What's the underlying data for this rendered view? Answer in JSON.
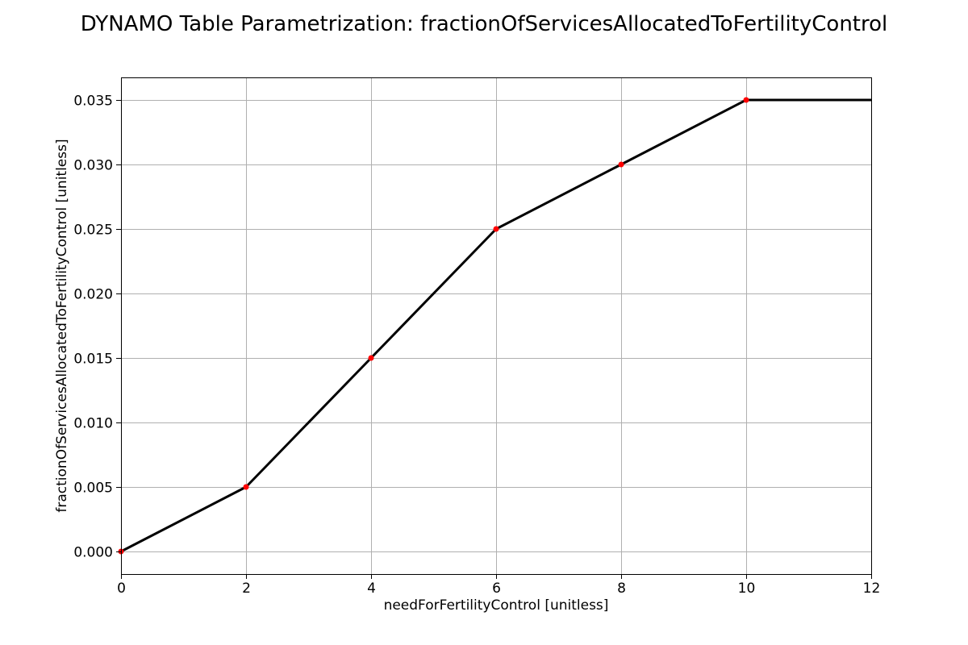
{
  "chart_data": {
    "type": "line",
    "title": "DYNAMO Table Parametrization: fractionOfServicesAllocatedToFertilityControl",
    "xlabel": "needForFertilityControl [unitless]",
    "ylabel": "fractionOfServicesAllocatedToFertilityControl [unitless]",
    "xlim": [
      0,
      12
    ],
    "ylim": [
      -0.00175,
      0.03675
    ],
    "x_ticks": [
      "0",
      "2",
      "4",
      "6",
      "8",
      "10",
      "12"
    ],
    "y_ticks": [
      "0.000",
      "0.005",
      "0.010",
      "0.015",
      "0.020",
      "0.025",
      "0.030",
      "0.035"
    ],
    "grid": true,
    "series": [
      {
        "x": [
          0,
          2,
          4,
          6,
          8,
          10,
          12
        ],
        "y": [
          0.0,
          0.005,
          0.015,
          0.025,
          0.03,
          0.035,
          0.035
        ],
        "color": "#000000"
      }
    ],
    "points": {
      "x": [
        0,
        2,
        4,
        6,
        8,
        10
      ],
      "y": [
        0.0,
        0.005,
        0.015,
        0.025,
        0.03,
        0.035
      ],
      "color": "#ff0000"
    }
  }
}
